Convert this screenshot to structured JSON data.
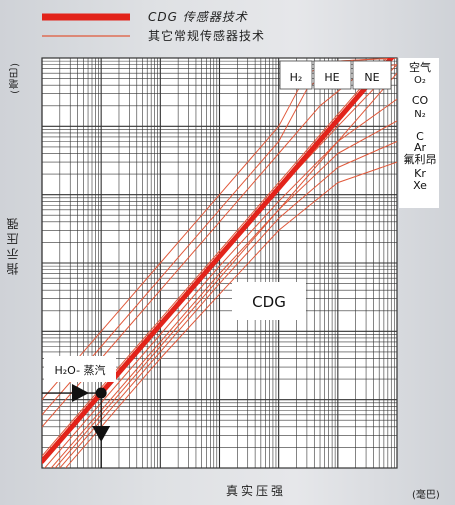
{
  "legend": [
    {
      "label": "CDG 传感器技术",
      "color": "#e2231a",
      "style": "thick"
    },
    {
      "label": "其它常规传感器技术",
      "color": "#e0583a",
      "style": "thin"
    }
  ],
  "axes": {
    "ylabel": "指示压强",
    "yunit": "(毫巴)",
    "xlabel": "真实压强",
    "xunit": "(毫巴)"
  },
  "chart_data": {
    "type": "line",
    "title": "",
    "xlabel": "真实压强",
    "ylabel": "指示压强",
    "xscale": "log",
    "yscale": "log",
    "xlim": [
      0.001,
      1000
    ],
    "ylim": [
      0.001,
      1000
    ],
    "grid": true,
    "series": [
      {
        "name": "CDG",
        "color": "#e2231a",
        "width": 5,
        "x": [
          0.001,
          1000
        ],
        "y": [
          0.00125,
          1250
        ]
      },
      {
        "name": "H2",
        "color": "#e0583a",
        "width": 1,
        "x": [
          0.001,
          0.01,
          0.1,
          1,
          10,
          30,
          100,
          1000
        ],
        "y": [
          0.01,
          0.1,
          1,
          10,
          100,
          600,
          900,
          1000
        ]
      },
      {
        "name": "HE",
        "color": "#e0583a",
        "width": 1,
        "x": [
          0.001,
          0.01,
          0.1,
          1,
          10,
          30,
          100,
          1000
        ],
        "y": [
          0.006,
          0.06,
          0.6,
          6,
          60,
          350,
          900,
          1000
        ]
      },
      {
        "name": "NE",
        "color": "#e0583a",
        "width": 1,
        "x": [
          0.001,
          0.01,
          0.1,
          1,
          10,
          50,
          300,
          1000
        ],
        "y": [
          0.004,
          0.04,
          0.4,
          4,
          40,
          200,
          700,
          800
        ]
      },
      {
        "name": "空气 O2",
        "color": "#e0583a",
        "width": 1,
        "x": [
          0.001,
          0.01,
          0.1,
          1,
          10,
          100,
          1000
        ],
        "y": [
          0.0015,
          0.015,
          0.15,
          1.5,
          15,
          150,
          1500
        ]
      },
      {
        "name": "CO N2",
        "color": "#e0583a",
        "width": 1,
        "x": [
          0.001,
          0.01,
          0.1,
          1,
          10,
          100,
          1000
        ],
        "y": [
          0.0012,
          0.012,
          0.12,
          1.2,
          12,
          100,
          800
        ]
      },
      {
        "name": "C Ar",
        "color": "#e0583a",
        "width": 1,
        "x": [
          0.001,
          0.01,
          0.1,
          1,
          10,
          100,
          1000
        ],
        "y": [
          0.0009,
          0.009,
          0.09,
          0.9,
          8,
          60,
          250
        ]
      },
      {
        "name": "氟利昂",
        "color": "#e0583a",
        "width": 1,
        "x": [
          0.001,
          0.01,
          0.1,
          1,
          10,
          100,
          1000
        ],
        "y": [
          0.0007,
          0.007,
          0.07,
          0.7,
          6,
          40,
          120
        ]
      },
      {
        "name": "Kr",
        "color": "#e0583a",
        "width": 1,
        "x": [
          0.001,
          0.01,
          0.1,
          1,
          10,
          100,
          1000
        ],
        "y": [
          0.0005,
          0.005,
          0.05,
          0.5,
          4.5,
          25,
          60
        ]
      },
      {
        "name": "Xe",
        "color": "#e0583a",
        "width": 1,
        "x": [
          0.001,
          0.01,
          0.1,
          1,
          10,
          100,
          1000
        ],
        "y": [
          0.0004,
          0.004,
          0.04,
          0.35,
          3,
          15,
          30
        ]
      },
      {
        "name": "H2O-蒸汽",
        "color": "#e0583a",
        "width": 1,
        "x": [
          0.001,
          0.01,
          0.1,
          1,
          10,
          100,
          1000
        ],
        "y": [
          0.0006,
          0.006,
          0.06,
          0.6,
          6,
          60,
          600
        ]
      }
    ],
    "annotations": {
      "gas_labels": [
        "H₂",
        "HE",
        "NE"
      ],
      "right_labels": [
        "空气",
        "O₂",
        "CO",
        "N₂",
        "C",
        "Ar",
        "氟利昂",
        "Kr",
        "Xe"
      ],
      "center_label": "CDG",
      "h2o_label": "H₂O- 蒸汽",
      "example_point": {
        "x": 0.01,
        "y": 0.0125
      }
    }
  }
}
